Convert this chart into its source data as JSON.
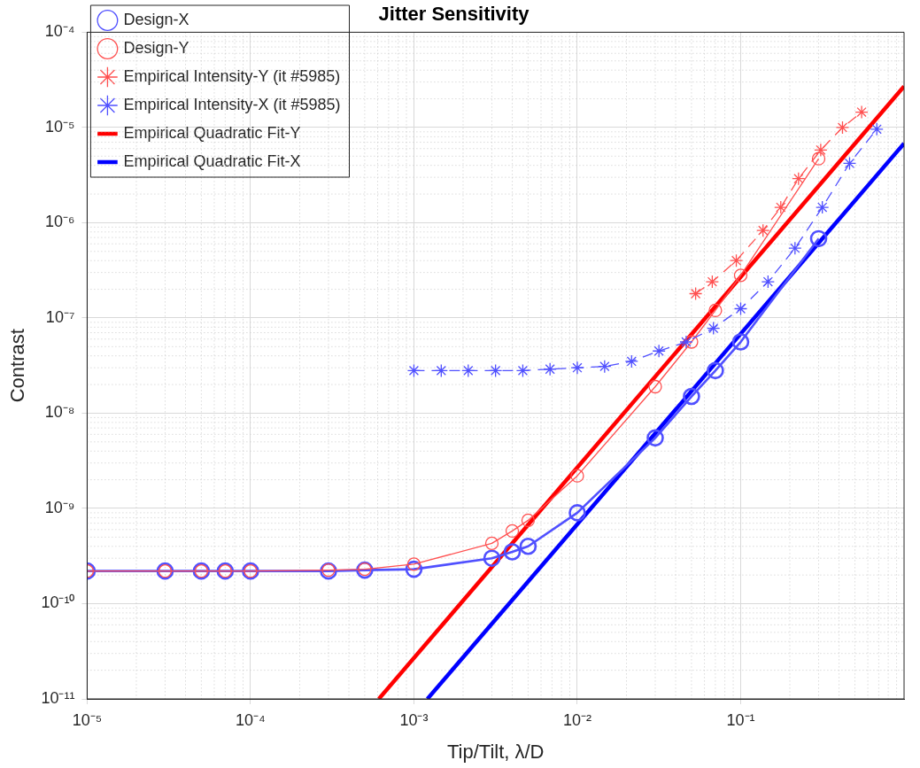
{
  "chart_data": {
    "type": "line",
    "title": "Jitter Sensitivity",
    "xlabel": "Tip/Tilt, λ/D",
    "ylabel": "Contrast",
    "log": "xy",
    "grid": true,
    "legend": "top left",
    "xlim": [
      1e-05,
      1
    ],
    "ylim": [
      1e-11,
      0.0001
    ],
    "xticks": [
      {
        "value": 1e-05,
        "label": "10⁻⁵"
      },
      {
        "value": 0.0001,
        "label": "10⁻⁴"
      },
      {
        "value": 0.001,
        "label": "10⁻³"
      },
      {
        "value": 0.01,
        "label": "10⁻²"
      },
      {
        "value": 0.1,
        "label": "10⁻¹"
      }
    ],
    "yticks": [
      {
        "value": 1e-11,
        "label": "10⁻¹¹"
      },
      {
        "value": 1e-10,
        "label": "10⁻¹⁰"
      },
      {
        "value": 1e-09,
        "label": "10⁻⁹"
      },
      {
        "value": 1e-08,
        "label": "10⁻⁸"
      },
      {
        "value": 1e-07,
        "label": "10⁻⁷"
      },
      {
        "value": 1e-06,
        "label": "10⁻⁶"
      },
      {
        "value": 1e-05,
        "label": "10⁻⁵"
      },
      {
        "value": 0.0001,
        "label": "10⁻⁴"
      }
    ],
    "series": [
      {
        "name": "Design-X",
        "color": "#5050ff",
        "marker": "circle",
        "line_style": "solid",
        "x": [
          1e-05,
          3e-05,
          5e-05,
          7e-05,
          0.0001,
          0.0003,
          0.0005,
          0.001,
          0.003,
          0.004,
          0.005,
          0.01,
          0.03,
          0.05,
          0.07,
          0.1,
          0.3
        ],
        "values": [
          2.2e-10,
          2.2e-10,
          2.2e-10,
          2.2e-10,
          2.2e-10,
          2.2e-10,
          2.25e-10,
          2.3e-10,
          3e-10,
          3.5e-10,
          4e-10,
          9e-10,
          5.5e-09,
          1.5e-08,
          2.8e-08,
          5.6e-08,
          6.8e-07
        ]
      },
      {
        "name": "Design-Y",
        "color": "#ff5050",
        "marker": "circle",
        "line_style": "solid",
        "x": [
          1e-05,
          3e-05,
          5e-05,
          7e-05,
          0.0001,
          0.0003,
          0.0005,
          0.001,
          0.003,
          0.004,
          0.005,
          0.01,
          0.03,
          0.05,
          0.07,
          0.1,
          0.3
        ],
        "values": [
          2.2e-10,
          2.2e-10,
          2.2e-10,
          2.2e-10,
          2.2e-10,
          2.25e-10,
          2.3e-10,
          2.6e-10,
          4.3e-10,
          5.8e-10,
          7.5e-10,
          2.2e-09,
          1.9e-08,
          5.6e-08,
          1.2e-07,
          2.8e-07,
          4.7e-06
        ]
      },
      {
        "name": "Empirical Intensity-Y (it #5985)",
        "color": "#ff5050",
        "marker": "cross",
        "line_style": "dashed",
        "x": [
          0.053,
          0.067,
          0.094,
          0.137,
          0.176,
          0.226,
          0.309,
          0.42,
          0.55
        ],
        "values": [
          1.8e-07,
          2.4e-07,
          4e-07,
          8.3e-07,
          1.45e-06,
          2.9e-06,
          5.8e-06,
          1e-05,
          1.45e-05
        ]
      },
      {
        "name": "Empirical Intensity-X (it #5985)",
        "color": "#5050ff",
        "marker": "cross",
        "line_style": "dashed",
        "x": [
          0.001,
          0.00147,
          0.00215,
          0.00316,
          0.00464,
          0.00681,
          0.01,
          0.0147,
          0.0215,
          0.0316,
          0.0464,
          0.0681,
          0.1,
          0.147,
          0.215,
          0.316,
          0.464,
          0.681
        ],
        "values": [
          2.8e-08,
          2.8e-08,
          2.8e-08,
          2.8e-08,
          2.8e-08,
          2.9e-08,
          3e-08,
          3.1e-08,
          3.5e-08,
          4.5e-08,
          5.6e-08,
          7.8e-08,
          1.25e-07,
          2.4e-07,
          5.4e-07,
          1.45e-06,
          4.2e-06,
          9.6e-06
        ]
      },
      {
        "name": "Empirical Quadratic Fit-Y",
        "color": "#ff0000",
        "marker": "none",
        "line_style": "solid",
        "x": [
          0.00061,
          1
        ],
        "values": [
          1e-11,
          2.7e-05
        ]
      },
      {
        "name": "Empirical Quadratic Fit-X",
        "color": "#0000ff",
        "marker": "none",
        "line_style": "solid",
        "x": [
          0.00121,
          1
        ],
        "values": [
          1e-11,
          6.8e-06
        ]
      }
    ]
  }
}
